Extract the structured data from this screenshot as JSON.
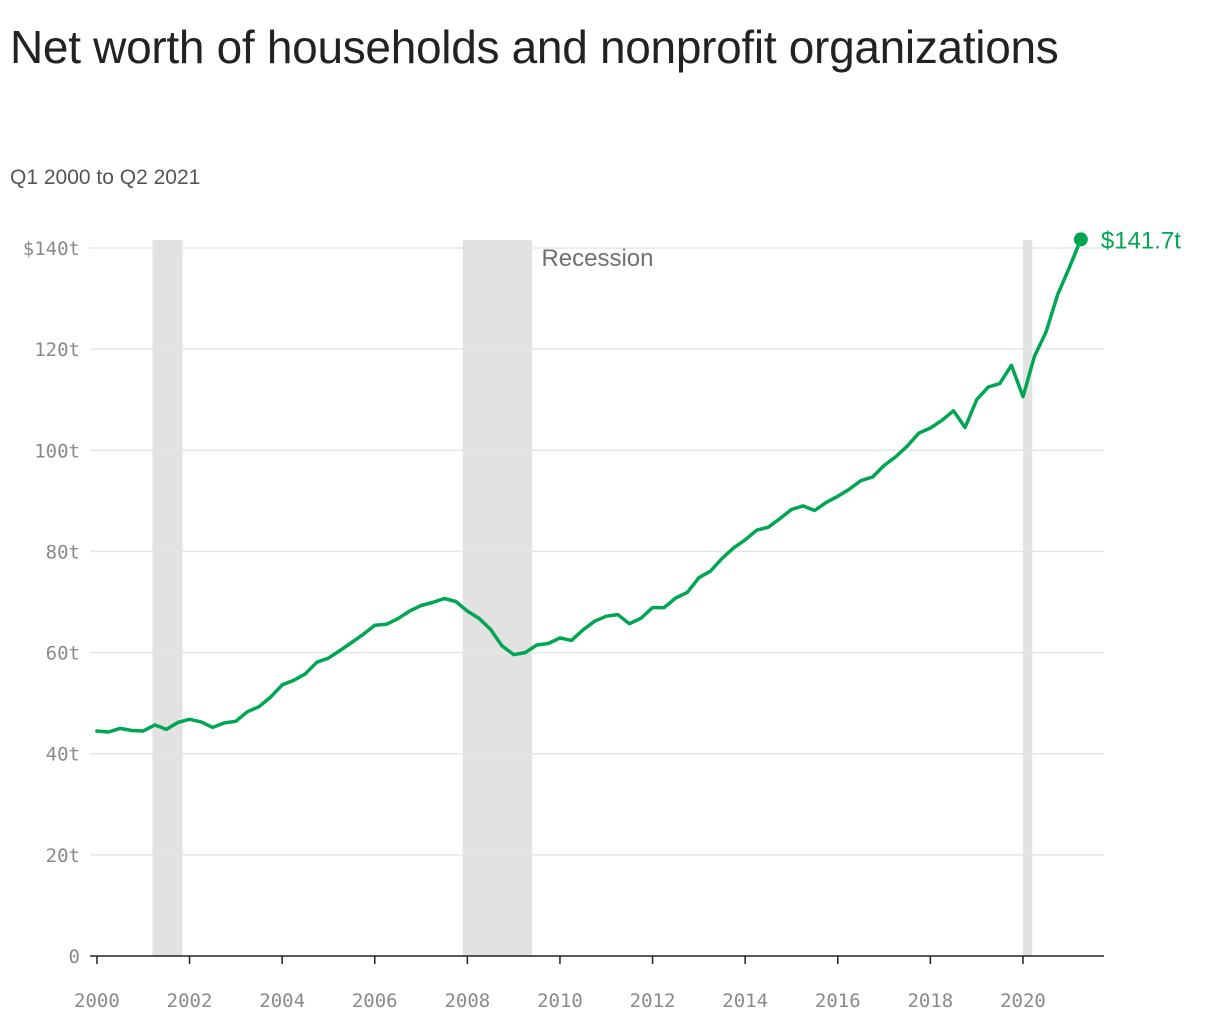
{
  "chart_data": {
    "type": "line",
    "title": "Net worth of households and nonprofit organizations",
    "subtitle": "Q1 2000 to Q2 2021",
    "xlabel": "",
    "ylabel": "",
    "xlim": [
      1999.85,
      2021.75
    ],
    "ylim": [
      0,
      140
    ],
    "grid": true,
    "line_color": "#00a651",
    "recession_color": "#e2e2e2",
    "grid_color": "#e6e6e6",
    "axis_color": "#222222",
    "y_ticks": [
      0,
      20,
      40,
      60,
      80,
      100,
      120,
      140
    ],
    "y_tick_labels": [
      "0",
      "20t",
      "40t",
      "60t",
      "80t",
      "100t",
      "120t",
      "$140t"
    ],
    "x_ticks": [
      2000,
      2002,
      2004,
      2006,
      2008,
      2010,
      2012,
      2014,
      2016,
      2018,
      2020
    ],
    "x_tick_labels": [
      "2000",
      "2002",
      "2004",
      "2006",
      "2008",
      "2010",
      "2012",
      "2014",
      "2016",
      "2018",
      "2020"
    ],
    "recessions": [
      {
        "start": 2001.2,
        "end": 2001.85
      },
      {
        "start": 2007.9,
        "end": 2009.4
      },
      {
        "start": 2020.0,
        "end": 2020.2
      }
    ],
    "annotation": {
      "text": "Recession",
      "x": 2009.6,
      "y": 138.4
    },
    "end_label": "$141.7t",
    "series": [
      {
        "x": [
          2000.0,
          2000.25,
          2000.5,
          2000.75,
          2001.0,
          2001.25,
          2001.5,
          2001.75,
          2002.0,
          2002.25,
          2002.5,
          2002.75,
          2003.0,
          2003.25,
          2003.5,
          2003.75,
          2004.0,
          2004.25,
          2004.5,
          2004.75,
          2005.0,
          2005.25,
          2005.5,
          2005.75,
          2006.0,
          2006.25,
          2006.5,
          2006.75,
          2007.0,
          2007.25,
          2007.5,
          2007.75,
          2008.0,
          2008.25,
          2008.5,
          2008.75,
          2009.0,
          2009.25,
          2009.5,
          2009.75,
          2010.0,
          2010.25,
          2010.5,
          2010.75,
          2011.0,
          2011.25,
          2011.5,
          2011.75,
          2012.0,
          2012.25,
          2012.5,
          2012.75,
          2013.0,
          2013.25,
          2013.5,
          2013.75,
          2014.0,
          2014.25,
          2014.5,
          2014.75,
          2015.0,
          2015.25,
          2015.5,
          2015.75,
          2016.0,
          2016.25,
          2016.5,
          2016.75,
          2017.0,
          2017.25,
          2017.5,
          2017.75,
          2018.0,
          2018.25,
          2018.5,
          2018.75,
          2019.0,
          2019.25,
          2019.5,
          2019.75,
          2020.0,
          2020.25,
          2020.5,
          2020.75,
          2021.0,
          2021.25
        ],
        "values": [
          44.5,
          44.3,
          45.0,
          44.6,
          44.5,
          45.7,
          44.8,
          46.2,
          46.8,
          46.3,
          45.2,
          46.1,
          46.4,
          48.3,
          49.3,
          51.2,
          53.6,
          54.5,
          55.8,
          58.1,
          58.9,
          60.4,
          62.0,
          63.6,
          65.4,
          65.6,
          66.7,
          68.2,
          69.3,
          69.9,
          70.7,
          70.1,
          68.2,
          66.8,
          64.6,
          61.3,
          59.6,
          60.0,
          61.5,
          61.8,
          62.9,
          62.4,
          64.5,
          66.2,
          67.2,
          67.5,
          65.7,
          66.8,
          68.9,
          68.9,
          70.8,
          71.9,
          74.8,
          76.1,
          78.6,
          80.7,
          82.3,
          84.2,
          84.8,
          86.5,
          88.3,
          89.0,
          88.1,
          89.7,
          90.9,
          92.3,
          94.0,
          94.7,
          97.0,
          98.7,
          100.8,
          103.4,
          104.4,
          105.9,
          107.8,
          104.5,
          110.0,
          112.5,
          113.2,
          116.8,
          110.6,
          118.6,
          123.4,
          130.8,
          136.1,
          141.7
        ]
      }
    ]
  }
}
